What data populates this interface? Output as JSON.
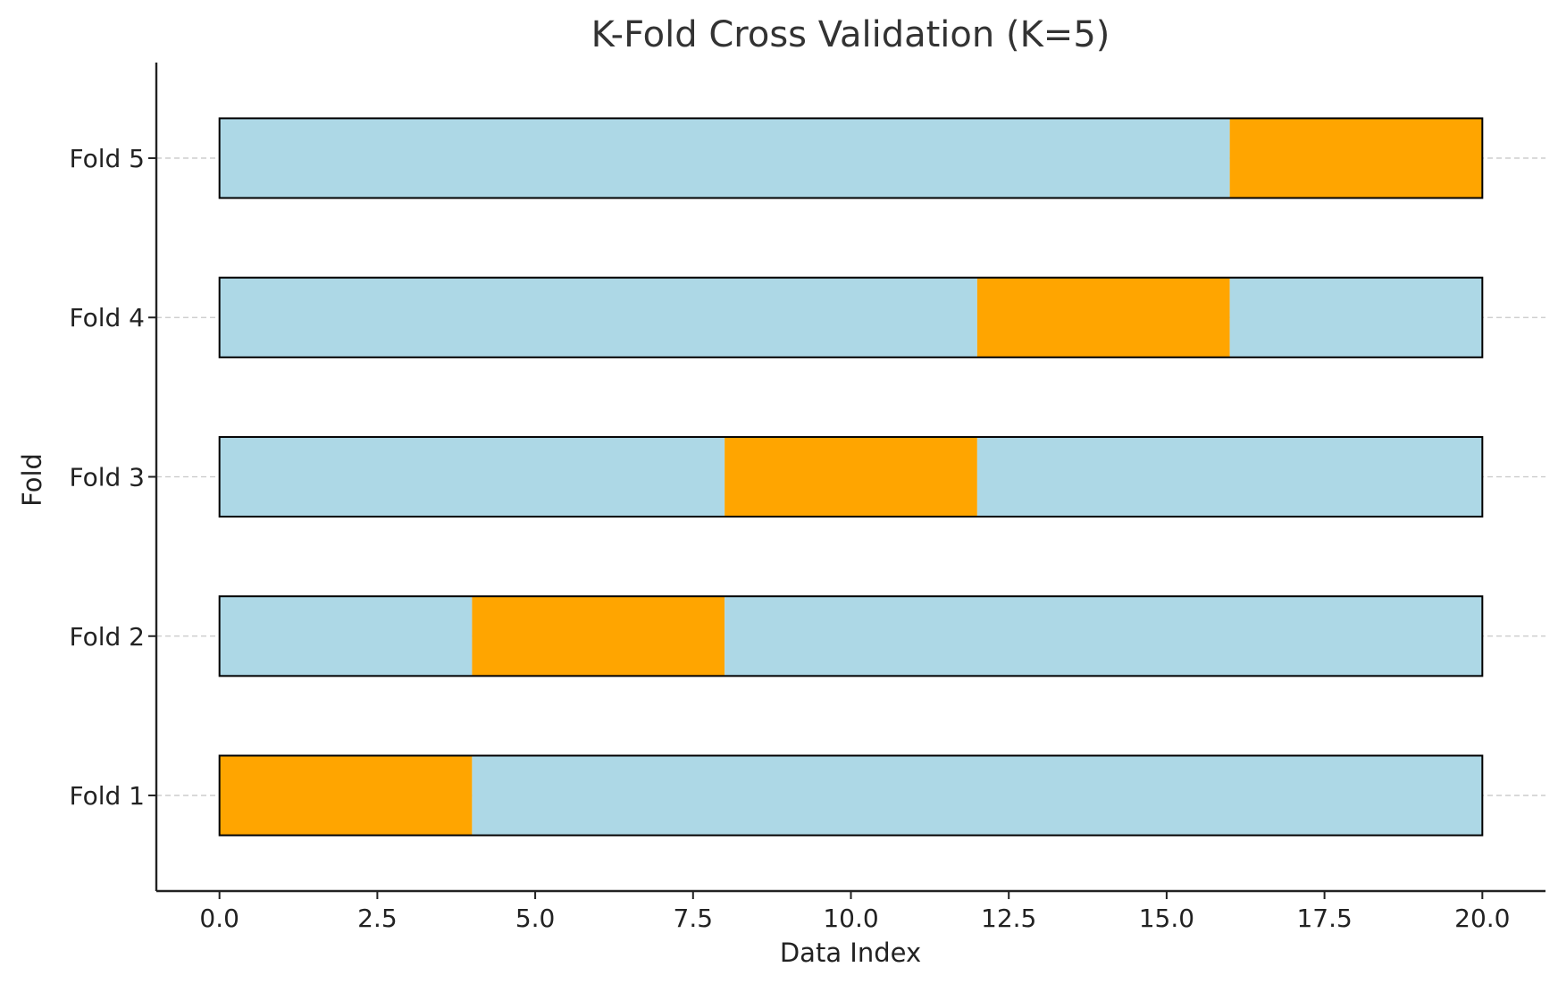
{
  "chart_data": {
    "type": "bar",
    "orientation": "horizontal",
    "stacked": true,
    "title": "K-Fold Cross Validation (K=5)",
    "xlabel": "Data Index",
    "ylabel": "Fold",
    "xlim": [
      -1,
      21
    ],
    "x_ticks": [
      0.0,
      2.5,
      5.0,
      7.5,
      10.0,
      12.5,
      15.0,
      17.5,
      20.0
    ],
    "x_tick_labels": [
      "0.0",
      "2.5",
      "5.0",
      "7.5",
      "10.0",
      "12.5",
      "15.0",
      "17.5",
      "20.0"
    ],
    "grid": {
      "y_major": true,
      "x_major": false,
      "style": "dashed"
    },
    "legend": null,
    "colors": {
      "train": "#add8e6",
      "test": "#ffa500"
    },
    "folds": [
      {
        "label": "Fold 1",
        "segments": [
          {
            "start": 0,
            "end": 4,
            "role": "test"
          },
          {
            "start": 4,
            "end": 20,
            "role": "train"
          }
        ]
      },
      {
        "label": "Fold 2",
        "segments": [
          {
            "start": 0,
            "end": 4,
            "role": "train"
          },
          {
            "start": 4,
            "end": 8,
            "role": "test"
          },
          {
            "start": 8,
            "end": 20,
            "role": "train"
          }
        ]
      },
      {
        "label": "Fold 3",
        "segments": [
          {
            "start": 0,
            "end": 8,
            "role": "train"
          },
          {
            "start": 8,
            "end": 12,
            "role": "test"
          },
          {
            "start": 12,
            "end": 20,
            "role": "train"
          }
        ]
      },
      {
        "label": "Fold 4",
        "segments": [
          {
            "start": 0,
            "end": 12,
            "role": "train"
          },
          {
            "start": 12,
            "end": 16,
            "role": "test"
          },
          {
            "start": 16,
            "end": 20,
            "role": "train"
          }
        ]
      },
      {
        "label": "Fold 5",
        "segments": [
          {
            "start": 0,
            "end": 16,
            "role": "train"
          },
          {
            "start": 16,
            "end": 20,
            "role": "test"
          }
        ]
      }
    ]
  }
}
